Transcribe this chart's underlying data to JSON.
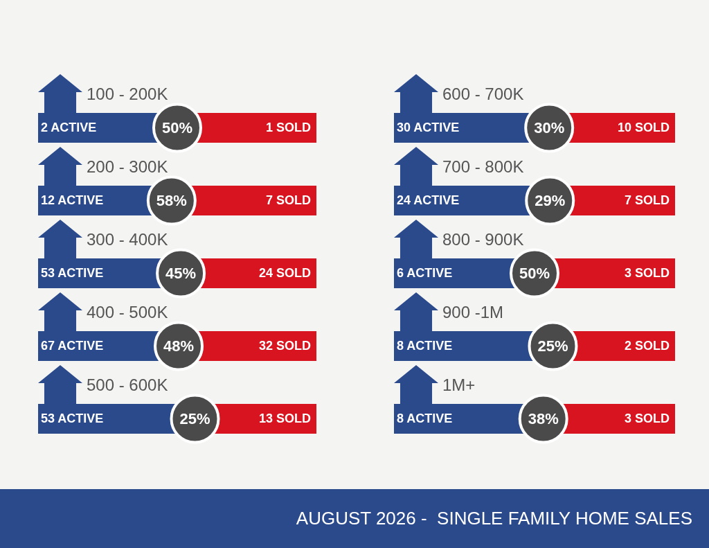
{
  "chart_data": {
    "type": "other",
    "title": "AUGUST 2026 -  SINGLE FAMILY HOME SALES",
    "categories": [
      "100 - 200K",
      "200 - 300K",
      "300 - 400K",
      "400 - 500K",
      "500 - 600K",
      "600 - 700K",
      "700 - 800K",
      "800 - 900K",
      "900 -1M",
      "1M+"
    ],
    "series": [
      {
        "color": "#2b4a8b",
        "values": [
          2,
          12,
          53,
          67,
          53,
          30,
          24,
          6,
          8,
          8
        ],
        "value_labels": [
          "2 ACTIVE",
          "12 ACTIVE",
          "53 ACTIVE",
          "67 ACTIVE",
          "53 ACTIVE",
          "30 ACTIVE",
          "24 ACTIVE",
          "6 ACTIVE",
          "8 ACTIVE",
          "8 ACTIVE"
        ]
      },
      {
        "color": "#d7141f",
        "values": [
          1,
          7,
          24,
          32,
          13,
          10,
          7,
          3,
          2,
          3
        ],
        "value_labels": [
          "1 SOLD",
          "7 SOLD",
          "24 SOLD",
          "32 SOLD",
          "13 SOLD",
          "10 SOLD",
          "7 SOLD",
          "3 SOLD",
          "2 SOLD",
          "3 SOLD"
        ]
      },
      {
        "color": "#4a4a4a",
        "values": [
          50,
          58,
          45,
          48,
          25,
          30,
          29,
          50,
          25,
          38
        ],
        "value_labels": [
          "50%",
          "58%",
          "45%",
          "48%",
          "25%",
          "30%",
          "29%",
          "50%",
          "25%",
          "38%"
        ]
      }
    ]
  }
}
